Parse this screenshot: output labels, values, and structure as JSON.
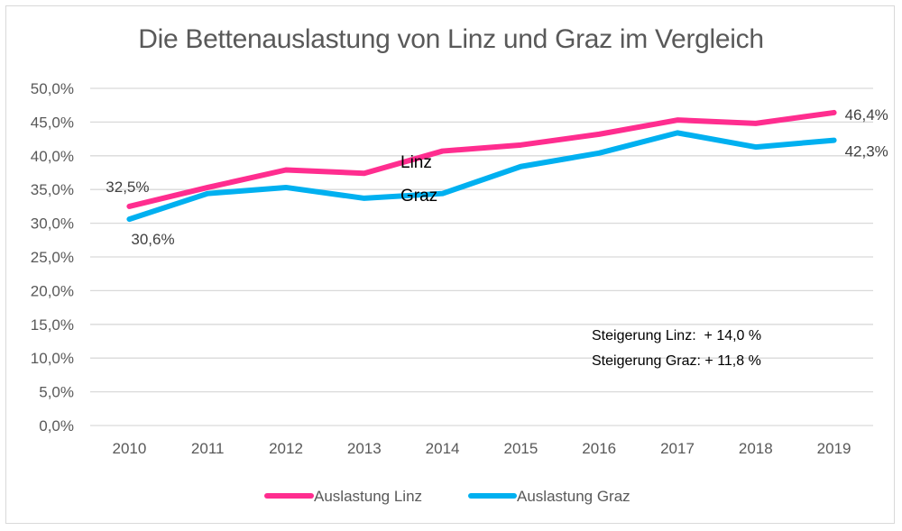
{
  "chart_data": {
    "type": "line",
    "title": "Die Bettenauslastung von Linz und Graz im Vergleich",
    "xlabel": "",
    "ylabel": "",
    "categories": [
      "2010",
      "2011",
      "2012",
      "2013",
      "2014",
      "2015",
      "2016",
      "2017",
      "2018",
      "2019"
    ],
    "ylim": [
      0,
      50
    ],
    "y_ticks": [
      0,
      5,
      10,
      15,
      20,
      25,
      30,
      35,
      40,
      45,
      50
    ],
    "y_tick_labels": [
      "0,0%",
      "5,0%",
      "10,0%",
      "15,0%",
      "20,0%",
      "25,0%",
      "30,0%",
      "35,0%",
      "40,0%",
      "45,0%",
      "50,0%"
    ],
    "grid": true,
    "legend_position": "bottom",
    "series": [
      {
        "name": "Auslastung Linz",
        "color": "#ff2d8f",
        "values": [
          32.5,
          35.3,
          37.9,
          37.4,
          40.7,
          41.6,
          43.2,
          45.3,
          44.8,
          46.4
        ],
        "data_labels": [
          {
            "index": 0,
            "text": "32,5%"
          },
          {
            "index": 9,
            "text": "46,4%"
          }
        ]
      },
      {
        "name": "Auslastung Graz",
        "color": "#00b0f0",
        "values": [
          30.6,
          34.4,
          35.3,
          33.7,
          34.4,
          38.4,
          40.4,
          43.4,
          41.3,
          42.3
        ],
        "data_labels": [
          {
            "index": 0,
            "text": "30,6%"
          },
          {
            "index": 9,
            "text": "42,3%"
          }
        ]
      }
    ],
    "annotations": {
      "series_labels": [
        "Linz",
        "Graz"
      ],
      "notes": [
        "Steigerung Linz:  + 14,0 %",
        "Steigerung Graz: + 11,8 %"
      ]
    }
  }
}
